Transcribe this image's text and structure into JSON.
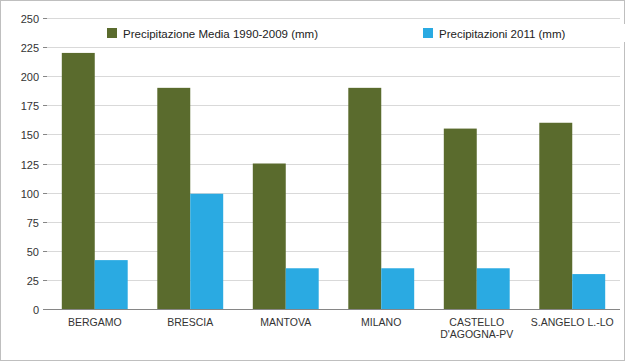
{
  "chart_data": {
    "type": "bar",
    "categories": [
      "BERGAMO",
      "BRESCIA",
      "MANTOVA",
      "MILANO",
      "CASTELLO D'AGOGNA-PV",
      "S.ANGELO L.-LO"
    ],
    "series": [
      {
        "name": "Precipitazione Media 1990-2009 (mm)",
        "color": "#5a6b2d",
        "values": [
          220,
          190,
          125,
          190,
          155,
          160
        ]
      },
      {
        "name": "Precipitazioni 2011 (mm)",
        "color": "#2aaae2",
        "values": [
          42,
          99,
          35,
          35,
          35,
          30
        ]
      }
    ],
    "ylim": [
      0,
      250
    ],
    "yticks": [
      0,
      25,
      50,
      75,
      100,
      125,
      150,
      175,
      200,
      225,
      250
    ],
    "grid": true,
    "legend": "top"
  }
}
